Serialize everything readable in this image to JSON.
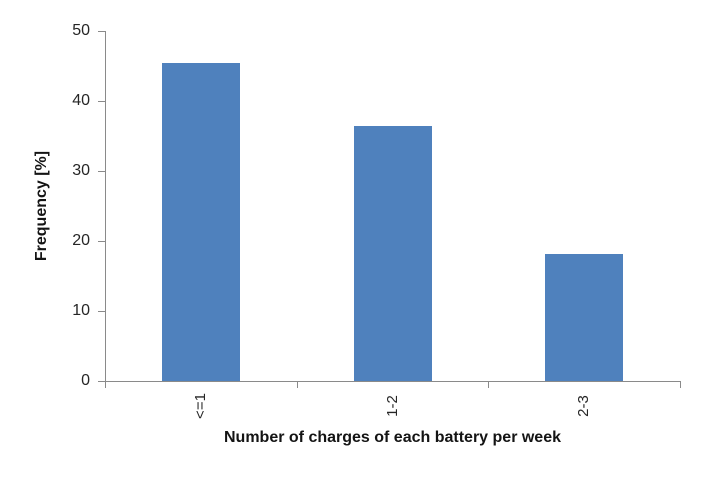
{
  "chart_data": {
    "type": "bar",
    "title": "",
    "categories": [
      "<=1",
      "1-2",
      "2-3"
    ],
    "values": [
      45.5,
      36.5,
      18.2
    ],
    "xlabel": "Number of charges of each battery per week",
    "ylabel": "Frequency [%]",
    "ylim": [
      0,
      50
    ],
    "yticks": [
      0,
      10,
      20,
      30,
      40,
      50
    ],
    "xtick_rotation_deg": -90,
    "grid": false,
    "legend_position": "none",
    "bar_color": "#4F81BD",
    "axis_color": "#8A8A8A",
    "tick_label_color": "#262626",
    "title_color": "#141414",
    "background_color": "#FFFFFF"
  }
}
